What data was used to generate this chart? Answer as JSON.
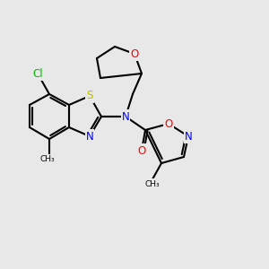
{
  "background_color": "#e8e8e8",
  "bond_color": "#000000",
  "cl_color": "#00bb00",
  "s_color": "#bbbb00",
  "n_color": "#0000ff",
  "o_color": "#ff0000",
  "figsize": [
    3.0,
    3.0
  ],
  "dpi": 100,
  "atoms": {
    "Cl": "Cl",
    "S": "S",
    "N": "N",
    "O": "O"
  }
}
